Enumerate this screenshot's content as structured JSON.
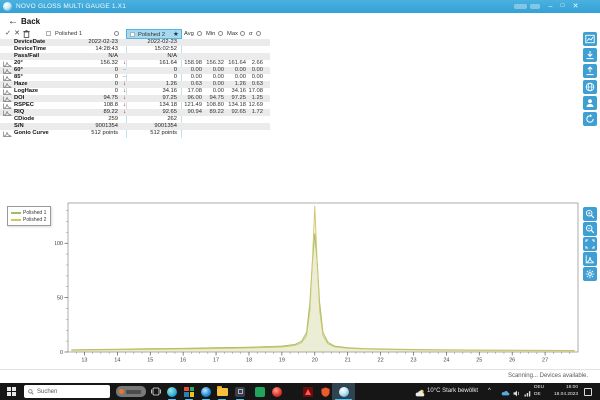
{
  "window": {
    "title": "NOVO GLOSS MULTI GAUGE 1.X1",
    "minimize": "–",
    "maximize": "□",
    "close": "✕"
  },
  "icons": {
    "back": "←",
    "check": "✓",
    "cross": "✕",
    "trash": "trash-can",
    "star": "★",
    "trend_down": "↓",
    "trend_flat": "–",
    "tray_expand": "^"
  },
  "nav": {
    "back_label": "Back"
  },
  "table": {
    "sample1_header": "Polished 1",
    "sample2_header": "Polished 2",
    "stat_headers": [
      "Avg",
      "Min",
      "Max",
      "σ"
    ],
    "rows": [
      {
        "label": "DeviceDate",
        "icon": false,
        "v1": "2022-02-23",
        "a1": "",
        "v2": "2022-02-23",
        "stats": [
          "",
          "",
          "",
          ""
        ]
      },
      {
        "label": "DeviceTime",
        "icon": false,
        "v1": "14:28:43",
        "a1": "",
        "v2": "15:02:52",
        "stats": [
          "",
          "",
          "",
          ""
        ]
      },
      {
        "label": "Pass/Fail",
        "icon": false,
        "v1": "N/A",
        "a1": "",
        "v2": "N/A",
        "stats": [
          "",
          "",
          "",
          ""
        ]
      },
      {
        "label": "20°",
        "icon": true,
        "v1": "156.32",
        "a1": "down",
        "v2": "161.64",
        "stats": [
          "158.98",
          "156.32",
          "161.64",
          "2.66"
        ]
      },
      {
        "label": "60°",
        "icon": true,
        "v1": "0",
        "a1": "flat",
        "v2": "0",
        "stats": [
          "0.00",
          "0.00",
          "0.00",
          "0.00"
        ]
      },
      {
        "label": "85°",
        "icon": true,
        "v1": "0",
        "a1": "flat",
        "v2": "0",
        "stats": [
          "0.00",
          "0.00",
          "0.00",
          "0.00"
        ]
      },
      {
        "label": "Haze",
        "icon": true,
        "v1": "0",
        "a1": "down",
        "v2": "1.26",
        "stats": [
          "0.63",
          "0.00",
          "1.26",
          "0.63"
        ]
      },
      {
        "label": "LogHaze",
        "icon": true,
        "v1": "0",
        "a1": "down",
        "v2": "34.16",
        "stats": [
          "17.08",
          "0.00",
          "34.16",
          "17.08"
        ]
      },
      {
        "label": "DOI",
        "icon": true,
        "v1": "94.75",
        "a1": "down",
        "v2": "97.25",
        "stats": [
          "96.00",
          "94.75",
          "97.25",
          "1.25"
        ]
      },
      {
        "label": "RSPEC",
        "icon": true,
        "v1": "108.8",
        "a1": "down",
        "v2": "134.18",
        "stats": [
          "121.49",
          "108.80",
          "134.18",
          "12.69"
        ]
      },
      {
        "label": "RIQ",
        "icon": true,
        "v1": "89.22",
        "a1": "down",
        "v2": "92.65",
        "stats": [
          "90.94",
          "89.22",
          "92.65",
          "1.72"
        ]
      },
      {
        "label": "CDiode",
        "icon": false,
        "v1": "259",
        "a1": "",
        "v2": "262",
        "stats": [
          "",
          "",
          "",
          ""
        ]
      },
      {
        "label": "S/N",
        "icon": false,
        "v1": "9001354",
        "a1": "",
        "v2": "9001354",
        "stats": [
          "",
          "",
          "",
          ""
        ]
      },
      {
        "label": "Gonio Curve",
        "icon": true,
        "v1": "512 points",
        "a1": "",
        "v2": "512 points",
        "stats": [
          "",
          "",
          "",
          ""
        ]
      }
    ]
  },
  "chart_data": {
    "type": "line",
    "title": "",
    "xlabel": "",
    "ylabel": "",
    "xlim": [
      12.5,
      28
    ],
    "ylim": [
      0,
      137
    ],
    "x_major_ticks": [
      13,
      14,
      15,
      16,
      17,
      18,
      19,
      20,
      21,
      22,
      23,
      24,
      25,
      26,
      27
    ],
    "y_major_ticks": [
      0,
      50,
      100
    ],
    "x_minor_step": 0.25,
    "y_minor_step": 10,
    "grid": false,
    "legend_position": "top-left-outside",
    "series": [
      {
        "name": "Polished 1",
        "color": "#9cbf5f",
        "peak_x": 20,
        "peak_y": 108.8,
        "points": [
          [
            12.6,
            2
          ],
          [
            13,
            2.2
          ],
          [
            14,
            2.6
          ],
          [
            15,
            3
          ],
          [
            16,
            3.4
          ],
          [
            17,
            3.9
          ],
          [
            18,
            4.4
          ],
          [
            19,
            5.5
          ],
          [
            19.4,
            7
          ],
          [
            19.6,
            10
          ],
          [
            19.75,
            18
          ],
          [
            19.85,
            45
          ],
          [
            19.92,
            80
          ],
          [
            20,
            108.8
          ],
          [
            20.08,
            80
          ],
          [
            20.15,
            45
          ],
          [
            20.25,
            18
          ],
          [
            20.4,
            9
          ],
          [
            20.6,
            5.5
          ],
          [
            21,
            4
          ],
          [
            21.5,
            3.2
          ],
          [
            22,
            2.8
          ],
          [
            23,
            2.3
          ],
          [
            24,
            2
          ],
          [
            25,
            1.8
          ],
          [
            26,
            1.6
          ],
          [
            27,
            1.5
          ],
          [
            27.9,
            1.4
          ]
        ]
      },
      {
        "name": "Polished 2",
        "color": "#d2c36c",
        "peak_x": 20,
        "peak_y": 134.18,
        "points": [
          [
            12.6,
            1.6
          ],
          [
            13,
            1.8
          ],
          [
            14,
            2.1
          ],
          [
            15,
            2.4
          ],
          [
            16,
            2.8
          ],
          [
            17,
            3.2
          ],
          [
            18,
            3.7
          ],
          [
            19,
            4.6
          ],
          [
            19.4,
            6
          ],
          [
            19.6,
            8.5
          ],
          [
            19.75,
            15
          ],
          [
            19.85,
            38
          ],
          [
            19.93,
            85
          ],
          [
            20,
            134.18
          ],
          [
            20.07,
            85
          ],
          [
            20.15,
            38
          ],
          [
            20.25,
            15
          ],
          [
            20.4,
            7.5
          ],
          [
            20.6,
            4.8
          ],
          [
            21,
            3.4
          ],
          [
            21.5,
            2.8
          ],
          [
            22,
            2.4
          ],
          [
            23,
            2
          ],
          [
            24,
            1.7
          ],
          [
            25,
            1.5
          ],
          [
            26,
            1.4
          ],
          [
            27,
            1.3
          ],
          [
            27.9,
            1.2
          ]
        ]
      }
    ]
  },
  "status": {
    "text": "Scanning... Devices available."
  },
  "taskbar": {
    "search_placeholder": "Suchen",
    "weather": "10°C Stark bewölkt",
    "language_line1": "DEU",
    "language_line2": "DE",
    "time": "18:00",
    "date": "18.04.2023"
  },
  "colors": {
    "titlebar": "#3aa7da",
    "accent_button": "#3f9fd2",
    "selected_header": "#a6d8ee",
    "trend_red": "#b40000",
    "row_stripe": "#ebebeb",
    "series1": "#9cbf5f",
    "series2": "#d2c36c",
    "taskbar": "#161616",
    "task_underline": "#4cc2ff"
  }
}
